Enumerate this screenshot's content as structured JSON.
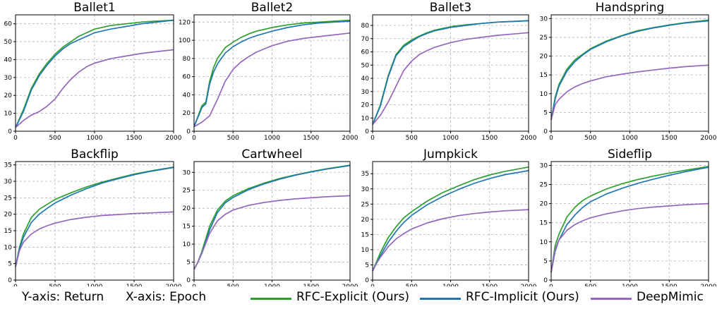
{
  "chart_data": [
    {
      "type": "line",
      "title": "Ballet1",
      "xlim": [
        0,
        2000
      ],
      "ylim": [
        0,
        65
      ],
      "yticks": [
        0,
        10,
        20,
        30,
        40,
        50,
        60
      ],
      "xticks": [
        0,
        500,
        1000,
        1500,
        2000
      ],
      "grid": true,
      "series": [
        {
          "name": "RFC-Explicit (Ours)",
          "x": [
            0,
            100,
            200,
            300,
            400,
            500,
            600,
            700,
            800,
            900,
            1000,
            1200,
            1400,
            1600,
            1800,
            2000
          ],
          "values": [
            2,
            12,
            24,
            32,
            38,
            43,
            47,
            50,
            53,
            55,
            57,
            59,
            60,
            61,
            61.5,
            62
          ]
        },
        {
          "name": "RFC-Implicit (Ours)",
          "x": [
            0,
            100,
            200,
            300,
            400,
            500,
            600,
            700,
            800,
            900,
            1000,
            1200,
            1400,
            1600,
            1800,
            2000
          ],
          "values": [
            2,
            11,
            23,
            31,
            37,
            42,
            46,
            49,
            51,
            53,
            55,
            57,
            58.5,
            60,
            61,
            62
          ]
        },
        {
          "name": "DeepMimic",
          "x": [
            0,
            100,
            200,
            300,
            400,
            500,
            600,
            700,
            800,
            900,
            1000,
            1200,
            1400,
            1600,
            1800,
            2000
          ],
          "values": [
            2,
            6,
            9,
            11,
            14,
            18,
            24,
            29,
            33,
            36,
            38,
            40.5,
            42,
            43.5,
            44.5,
            45.5
          ]
        }
      ]
    },
    {
      "type": "line",
      "title": "Ballet2",
      "xlim": [
        0,
        2000
      ],
      "ylim": [
        0,
        128
      ],
      "yticks": [
        0,
        20,
        40,
        60,
        80,
        100,
        120
      ],
      "xticks": [
        0,
        500,
        1000,
        1500,
        2000
      ],
      "grid": true,
      "series": [
        {
          "name": "RFC-Explicit (Ours)",
          "x": [
            0,
            100,
            150,
            200,
            250,
            300,
            400,
            500,
            600,
            700,
            800,
            1000,
            1200,
            1400,
            1600,
            1800,
            2000
          ],
          "values": [
            5,
            28,
            32,
            55,
            70,
            80,
            92,
            98,
            103,
            107,
            110,
            114,
            117,
            119,
            120,
            121,
            122
          ]
        },
        {
          "name": "RFC-Implicit (Ours)",
          "x": [
            0,
            100,
            150,
            200,
            250,
            300,
            400,
            500,
            600,
            700,
            800,
            1000,
            1200,
            1400,
            1600,
            1800,
            2000
          ],
          "values": [
            5,
            26,
            30,
            52,
            65,
            74,
            86,
            93,
            98,
            102,
            105,
            110,
            114,
            117,
            119,
            120,
            121
          ]
        },
        {
          "name": "DeepMimic",
          "x": [
            0,
            100,
            200,
            300,
            400,
            500,
            600,
            700,
            800,
            1000,
            1200,
            1400,
            1600,
            1800,
            2000
          ],
          "values": [
            5,
            10,
            17,
            35,
            55,
            68,
            76,
            82,
            87,
            94,
            99,
            102,
            104,
            106,
            108
          ]
        }
      ]
    },
    {
      "type": "line",
      "title": "Ballet3",
      "xlim": [
        0,
        2000
      ],
      "ylim": [
        0,
        88
      ],
      "yticks": [
        0,
        10,
        20,
        30,
        40,
        50,
        60,
        70,
        80
      ],
      "xticks": [
        0,
        500,
        1000,
        1500,
        2000
      ],
      "grid": true,
      "series": [
        {
          "name": "RFC-Explicit (Ours)",
          "x": [
            0,
            100,
            200,
            300,
            400,
            500,
            600,
            700,
            800,
            1000,
            1200,
            1400,
            1600,
            1800,
            2000
          ],
          "values": [
            5,
            20,
            42,
            58,
            65,
            69,
            72,
            74.5,
            76.5,
            79,
            80.5,
            81.5,
            82.5,
            83,
            83.5
          ]
        },
        {
          "name": "RFC-Implicit (Ours)",
          "x": [
            0,
            100,
            200,
            300,
            400,
            500,
            600,
            700,
            800,
            1000,
            1200,
            1400,
            1600,
            1800,
            2000
          ],
          "values": [
            5,
            19,
            41,
            57,
            64,
            68,
            71.5,
            74,
            76,
            78.5,
            80,
            81.5,
            82.5,
            83,
            83.5
          ]
        },
        {
          "name": "DeepMimic",
          "x": [
            0,
            100,
            200,
            300,
            400,
            500,
            600,
            700,
            800,
            1000,
            1200,
            1400,
            1600,
            1800,
            2000
          ],
          "values": [
            5,
            12,
            22,
            34,
            46,
            53,
            58,
            61,
            63.5,
            67,
            69.5,
            71,
            72.5,
            73.5,
            74.5
          ]
        }
      ]
    },
    {
      "type": "line",
      "title": "Handspring",
      "xlim": [
        0,
        2000
      ],
      "ylim": [
        0,
        31
      ],
      "yticks": [
        0,
        5,
        10,
        15,
        20,
        25,
        30
      ],
      "xticks": [
        0,
        500,
        1000,
        1500,
        2000
      ],
      "grid": true,
      "series": [
        {
          "name": "RFC-Explicit (Ours)",
          "x": [
            0,
            50,
            100,
            200,
            300,
            400,
            500,
            700,
            900,
            1100,
            1300,
            1500,
            1700,
            2000
          ],
          "values": [
            3,
            9,
            12.5,
            16.5,
            19,
            20.5,
            22,
            24,
            25.5,
            26.8,
            27.6,
            28.3,
            28.9,
            29.6
          ]
        },
        {
          "name": "RFC-Implicit (Ours)",
          "x": [
            0,
            50,
            100,
            200,
            300,
            400,
            500,
            700,
            900,
            1100,
            1300,
            1500,
            1700,
            2000
          ],
          "values": [
            3,
            8.5,
            12,
            16,
            18.5,
            20.3,
            21.8,
            23.8,
            25.4,
            26.6,
            27.5,
            28.2,
            28.8,
            29.4
          ]
        },
        {
          "name": "DeepMimic",
          "x": [
            0,
            50,
            100,
            200,
            300,
            400,
            500,
            700,
            900,
            1100,
            1300,
            1500,
            1700,
            2000
          ],
          "values": [
            3,
            7,
            8.5,
            10.5,
            11.8,
            12.7,
            13.4,
            14.5,
            15.2,
            15.8,
            16.3,
            16.8,
            17.2,
            17.6
          ]
        }
      ]
    },
    {
      "type": "line",
      "title": "Backflip",
      "xlim": [
        0,
        2000
      ],
      "ylim": [
        0,
        36
      ],
      "yticks": [
        0,
        5,
        10,
        15,
        20,
        25,
        30,
        35
      ],
      "xticks": [
        0,
        500,
        1000,
        1500,
        2000
      ],
      "grid": true,
      "series": [
        {
          "name": "RFC-Explicit (Ours)",
          "x": [
            0,
            50,
            100,
            200,
            300,
            400,
            500,
            700,
            900,
            1100,
            1300,
            1500,
            1700,
            2000
          ],
          "values": [
            4,
            10,
            14,
            19,
            21.5,
            23,
            24.5,
            26.5,
            28.3,
            29.8,
            31,
            32.2,
            33.1,
            34.3
          ]
        },
        {
          "name": "RFC-Implicit (Ours)",
          "x": [
            0,
            50,
            100,
            200,
            300,
            400,
            500,
            700,
            900,
            1100,
            1300,
            1500,
            1700,
            2000
          ],
          "values": [
            4,
            9.5,
            13,
            17.5,
            20,
            21.8,
            23.4,
            25.8,
            27.8,
            29.5,
            30.8,
            32,
            33,
            34.2
          ]
        },
        {
          "name": "DeepMimic",
          "x": [
            0,
            50,
            100,
            200,
            300,
            400,
            500,
            700,
            900,
            1100,
            1300,
            1500,
            1700,
            2000
          ],
          "values": [
            4,
            9,
            11.5,
            14,
            15.5,
            16.5,
            17.3,
            18.4,
            19.1,
            19.6,
            19.9,
            20.2,
            20.4,
            20.7
          ]
        }
      ]
    },
    {
      "type": "line",
      "title": "Cartwheel",
      "xlim": [
        0,
        2000
      ],
      "ylim": [
        0,
        33
      ],
      "yticks": [
        0,
        5,
        10,
        15,
        20,
        25,
        30
      ],
      "xticks": [
        0,
        500,
        1000,
        1500,
        2000
      ],
      "grid": true,
      "series": [
        {
          "name": "RFC-Explicit (Ours)",
          "x": [
            0,
            50,
            100,
            200,
            300,
            400,
            500,
            700,
            900,
            1100,
            1300,
            1500,
            1700,
            2000
          ],
          "values": [
            3,
            5,
            8,
            15,
            19.5,
            22,
            23.5,
            25.5,
            27,
            28.3,
            29.3,
            30.2,
            31,
            32
          ]
        },
        {
          "name": "RFC-Implicit (Ours)",
          "x": [
            0,
            50,
            100,
            200,
            300,
            400,
            500,
            700,
            900,
            1100,
            1300,
            1500,
            1700,
            2000
          ],
          "values": [
            3,
            5,
            7.5,
            14,
            18.8,
            21.5,
            23,
            25.2,
            26.8,
            28.1,
            29.2,
            30.1,
            30.9,
            31.9
          ]
        },
        {
          "name": "DeepMimic",
          "x": [
            0,
            50,
            100,
            200,
            300,
            400,
            500,
            700,
            900,
            1100,
            1300,
            1500,
            1700,
            2000
          ],
          "values": [
            3,
            5,
            7.5,
            13,
            16.5,
            18.3,
            19.5,
            20.8,
            21.6,
            22.2,
            22.6,
            22.9,
            23.2,
            23.5
          ]
        }
      ]
    },
    {
      "type": "line",
      "title": "Jumpkick",
      "xlim": [
        0,
        2000
      ],
      "ylim": [
        0,
        39
      ],
      "yticks": [
        0,
        5,
        10,
        15,
        20,
        25,
        30,
        35
      ],
      "xticks": [
        0,
        500,
        1000,
        1500,
        2000
      ],
      "grid": true,
      "series": [
        {
          "name": "RFC-Explicit (Ours)",
          "x": [
            0,
            50,
            100,
            200,
            300,
            400,
            500,
            700,
            900,
            1100,
            1300,
            1500,
            1700,
            2000
          ],
          "values": [
            3,
            6,
            9,
            14,
            17.5,
            20.5,
            22.5,
            26,
            28.8,
            31,
            33,
            34.6,
            35.8,
            37.2
          ]
        },
        {
          "name": "RFC-Implicit (Ours)",
          "x": [
            0,
            50,
            100,
            200,
            300,
            400,
            500,
            700,
            900,
            1100,
            1300,
            1500,
            1700,
            2000
          ],
          "values": [
            3,
            5.5,
            8,
            12.5,
            16,
            19,
            21.3,
            24.8,
            27.5,
            29.8,
            31.8,
            33.4,
            34.7,
            36
          ]
        },
        {
          "name": "DeepMimic",
          "x": [
            0,
            50,
            100,
            200,
            300,
            400,
            500,
            700,
            900,
            1100,
            1300,
            1500,
            1700,
            2000
          ],
          "values": [
            3,
            5.5,
            7.5,
            11,
            13.5,
            15.3,
            16.8,
            18.8,
            20.2,
            21.2,
            21.9,
            22.4,
            22.8,
            23.2
          ]
        }
      ]
    },
    {
      "type": "line",
      "title": "Sideflip",
      "xlim": [
        0,
        2000
      ],
      "ylim": [
        0,
        31
      ],
      "yticks": [
        0,
        5,
        10,
        15,
        20,
        25,
        30
      ],
      "xticks": [
        0,
        500,
        1000,
        1500,
        2000
      ],
      "grid": true,
      "series": [
        {
          "name": "RFC-Explicit (Ours)",
          "x": [
            0,
            50,
            100,
            200,
            300,
            400,
            500,
            700,
            900,
            1100,
            1300,
            1500,
            1700,
            2000
          ],
          "values": [
            2,
            9,
            12,
            16.5,
            19,
            20.8,
            22,
            23.8,
            25.2,
            26.3,
            27.2,
            28,
            28.7,
            29.7
          ]
        },
        {
          "name": "RFC-Implicit (Ours)",
          "x": [
            0,
            50,
            100,
            200,
            300,
            400,
            500,
            700,
            900,
            1100,
            1300,
            1500,
            1700,
            2000
          ],
          "values": [
            2,
            7.5,
            10.5,
            14.5,
            17,
            19,
            20.5,
            22.5,
            24,
            25.3,
            26.4,
            27.4,
            28.3,
            29.5
          ]
        },
        {
          "name": "DeepMimic",
          "x": [
            0,
            50,
            100,
            200,
            300,
            400,
            500,
            700,
            900,
            1100,
            1300,
            1500,
            1700,
            2000
          ],
          "values": [
            2,
            8,
            10.5,
            13,
            14.5,
            15.5,
            16.3,
            17.3,
            18.1,
            18.7,
            19.1,
            19.4,
            19.7,
            20
          ]
        }
      ]
    }
  ],
  "colors": {
    "explicit": "#2ca02c",
    "implicit": "#1f77b4",
    "deepmimic": "#9467bd"
  },
  "footer": {
    "y_axis_note": "Y-axis: Return",
    "x_axis_note": "X-axis: Epoch",
    "legend": [
      {
        "label": "RFC-Explicit (Ours)",
        "color": "#2ca02c"
      },
      {
        "label": "RFC-Implicit (Ours)",
        "color": "#1f77b4"
      },
      {
        "label": "DeepMimic",
        "color": "#9467bd"
      }
    ]
  }
}
